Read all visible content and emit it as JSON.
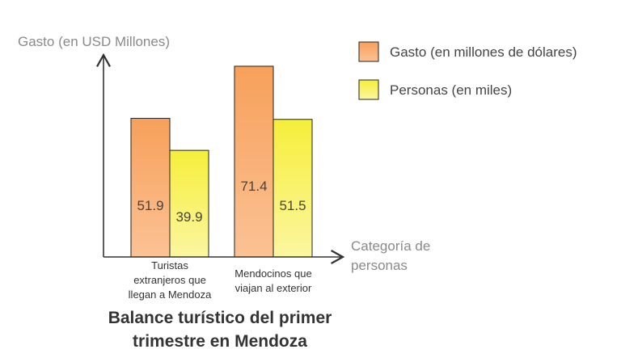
{
  "chart_data": {
    "type": "bar",
    "title": [
      "Balance turístico del primer",
      "trimestre en Mendoza"
    ],
    "ylabel": "Gasto (en USD Millones)",
    "xlabel": [
      "Categoría de",
      "personas"
    ],
    "categories": [
      [
        "Turistas",
        "extranjeros que",
        "llegan a Mendoza"
      ],
      [
        "Mendocinos que",
        "viajan al exterior"
      ]
    ],
    "series": [
      {
        "name": "Gasto (en millones de dólares)",
        "values": [
          51.9,
          71.4
        ],
        "color": "#F7A05A",
        "fill_top": "#F7A05A",
        "fill_bottom": "#FBC295",
        "stroke": "#222222"
      },
      {
        "name": "Personas (en miles)",
        "values": [
          39.9,
          51.5
        ],
        "color": "#F6EE3A",
        "fill_top": "#F6EE3A",
        "fill_bottom": "#FBF6A0",
        "stroke": "#222222"
      }
    ],
    "ylim": [
      0,
      85
    ],
    "grid": false,
    "legend_position": "top-right"
  }
}
